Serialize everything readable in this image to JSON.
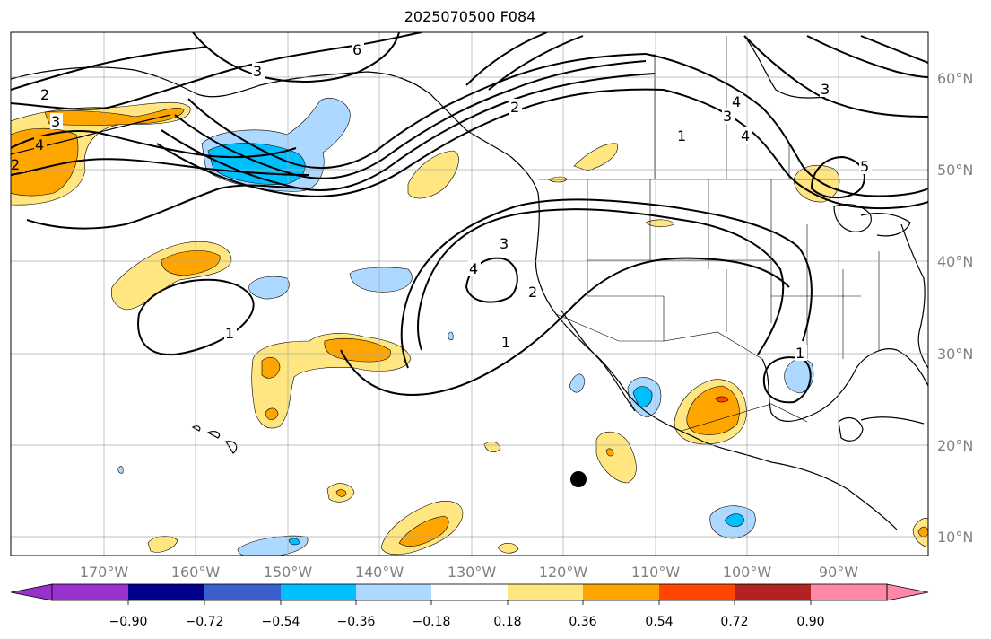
{
  "title": "2025070500 F084",
  "map": {
    "lat_labels": [
      "60°N",
      "50°N",
      "40°N",
      "30°N",
      "20°N",
      "10°N"
    ],
    "lon_labels": [
      "170°W",
      "160°W",
      "150°W",
      "140°W",
      "130°W",
      "120°W",
      "110°W",
      "100°W",
      "90°W"
    ],
    "contour_labels": [
      "2",
      "3",
      "4",
      "6",
      "3",
      "2",
      "2",
      "1",
      "4",
      "3",
      "4",
      "3",
      "5",
      "3",
      "4",
      "2",
      "1",
      "1",
      "1"
    ],
    "marker": "filled-circle"
  },
  "colorbar": {
    "tick_labels": [
      "−0.90",
      "−0.72",
      "−0.54",
      "−0.36",
      "−0.18",
      "0.18",
      "0.36",
      "0.54",
      "0.72",
      "0.90"
    ],
    "colors": [
      "#9932cc",
      "#00008b",
      "#3a5fcd",
      "#00bfff",
      "#add8ff",
      "#ffffff",
      "#ffe680",
      "#ffa500",
      "#ff4500",
      "#b22222",
      "#ff88aa"
    ]
  }
}
